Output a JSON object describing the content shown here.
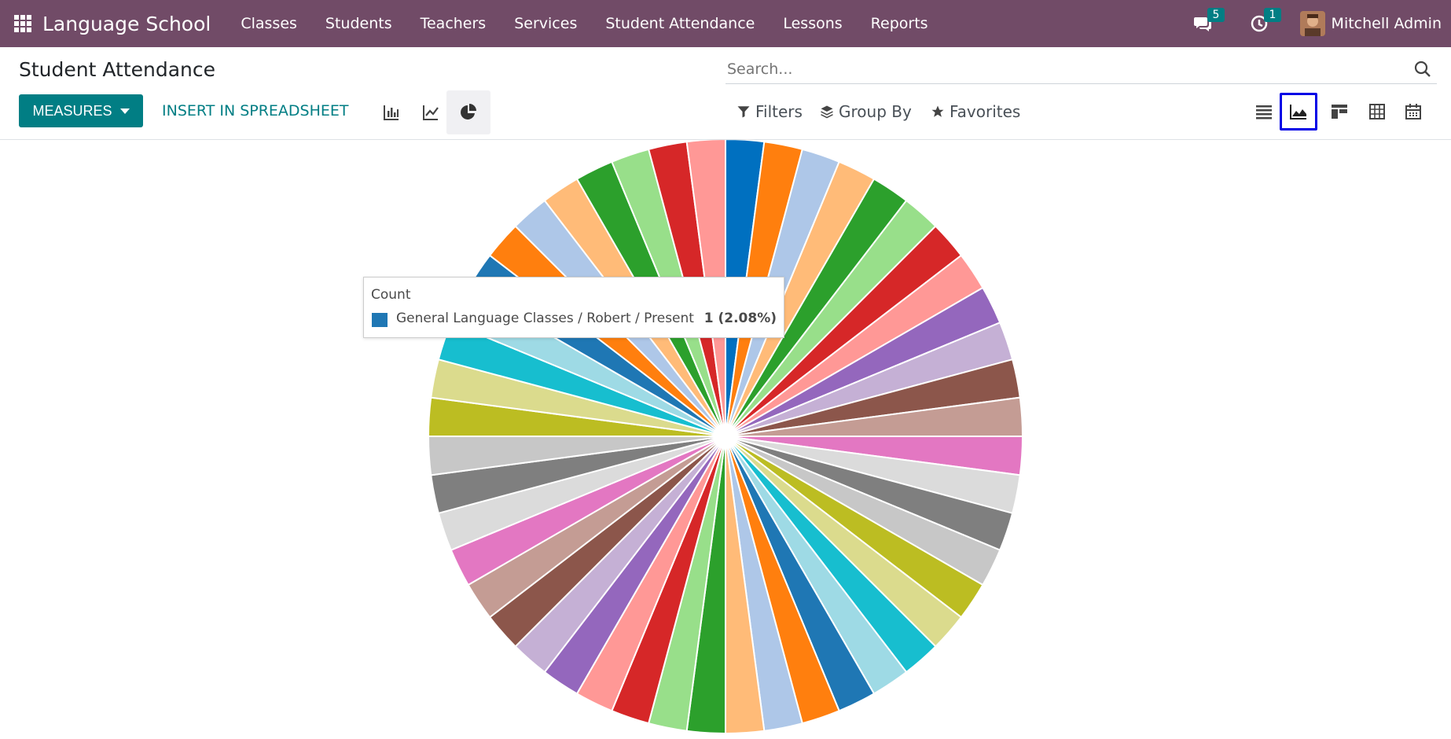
{
  "navbar": {
    "app_title": "Language School",
    "menu": [
      "Classes",
      "Students",
      "Teachers",
      "Services",
      "Student Attendance",
      "Lessons",
      "Reports"
    ],
    "messages_count": "5",
    "activities_count": "1",
    "user_name": "Mitchell Admin",
    "bg_color": "#714B67"
  },
  "control_panel": {
    "title": "Student Attendance",
    "search_placeholder": "Search...",
    "measures_label": "MEASURES",
    "insert_label": "INSERT IN SPREADSHEET",
    "chart_types": [
      "bar-chart-icon",
      "line-chart-icon",
      "pie-chart-icon"
    ],
    "active_chart_type": "pie",
    "filters_label": "Filters",
    "groupby_label": "Group By",
    "favorites_label": "Favorites",
    "views": [
      "list-view-icon",
      "graph-view-icon",
      "kanban-view-icon",
      "pivot-view-icon",
      "calendar-view-icon"
    ],
    "active_view": "graph"
  },
  "tooltip": {
    "title": "Count",
    "label": "General Language Classes / Robert / Present",
    "value": "1 (2.08%)",
    "color": "#1f77b4"
  },
  "chart_data": {
    "type": "pie",
    "measure": "Count",
    "total": 48,
    "values": [
      1,
      1,
      1,
      1,
      1,
      1,
      1,
      1,
      1,
      1,
      1,
      1,
      1,
      1,
      1,
      1,
      1,
      1,
      1,
      1,
      1,
      1,
      1,
      1,
      1,
      1,
      1,
      1,
      1,
      1,
      1,
      1,
      1,
      1,
      1,
      1,
      1,
      1,
      1,
      1,
      1,
      1,
      1,
      1,
      1,
      1,
      1,
      1
    ],
    "colors": [
      "#0070c0",
      "#ff7f0e",
      "#aec7e8",
      "#ffbb78",
      "#2ca02c",
      "#98df8a",
      "#d62728",
      "#ff9896",
      "#9467bd",
      "#c5b0d5",
      "#8c564b",
      "#c49c94",
      "#e377c2",
      "#dbdbdb",
      "#7f7f7f",
      "#c7c7c7",
      "#bcbd22",
      "#dbdb8d",
      "#17becf",
      "#9edae5",
      "#1f77b4",
      "#ff7f0e",
      "#aec7e8",
      "#ffbb78",
      "#2ca02c",
      "#98df8a",
      "#d62728",
      "#ff9896",
      "#9467bd",
      "#c5b0d5",
      "#8c564b",
      "#c49c94",
      "#e377c2",
      "#dbdbdb",
      "#7f7f7f",
      "#c7c7c7",
      "#bcbd22",
      "#dbdb8d",
      "#17becf",
      "#9edae5",
      "#1f77b4",
      "#ff7f0e",
      "#aec7e8",
      "#ffbb78",
      "#2ca02c",
      "#98df8a",
      "#d62728",
      "#ff9896"
    ],
    "title": "",
    "legend": "none"
  }
}
